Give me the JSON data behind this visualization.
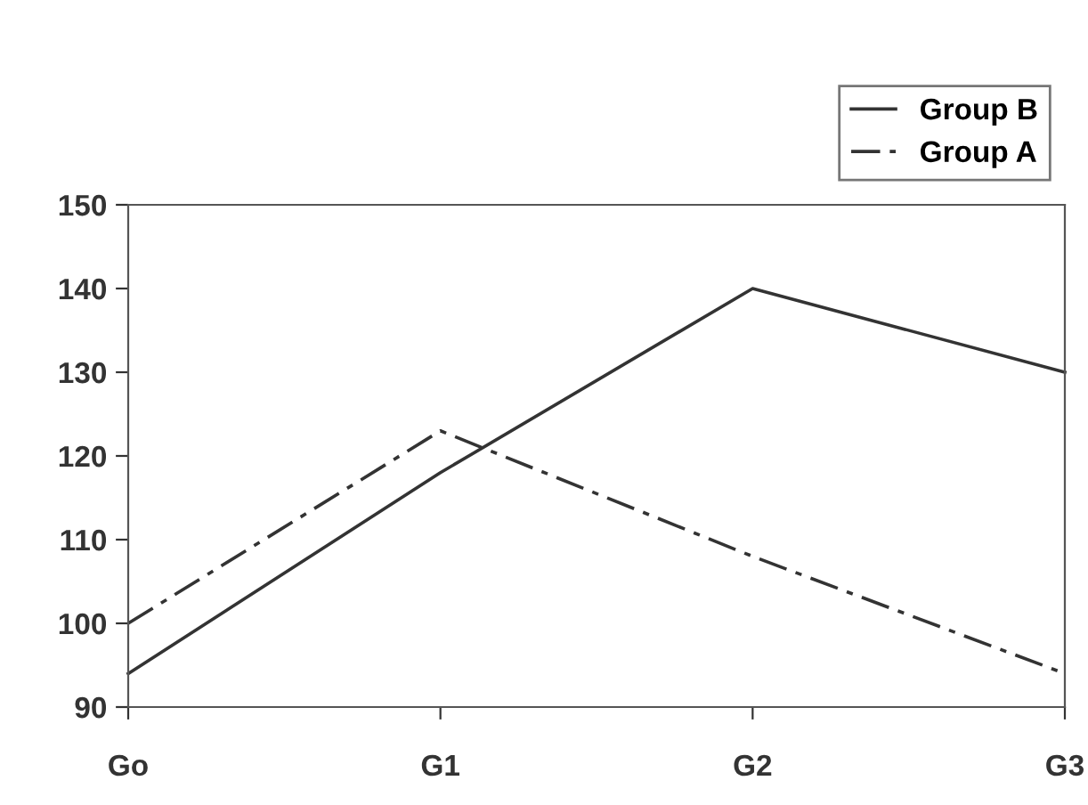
{
  "chart_data": {
    "type": "line",
    "categories": [
      "Go",
      "G1",
      "G2",
      "G3"
    ],
    "series": [
      {
        "name": "Group B",
        "color": "#333333",
        "values": [
          94,
          118,
          140,
          130
        ],
        "line_style": "solid"
      },
      {
        "name": "Group A",
        "color": "#333333",
        "values": [
          100,
          123,
          108,
          94
        ],
        "line_style": "dashed"
      }
    ],
    "ylim": [
      90,
      150
    ],
    "yticks": [
      90,
      100,
      110,
      120,
      130,
      140,
      150
    ],
    "grid": false,
    "legend": "top right",
    "marker": "none"
  }
}
